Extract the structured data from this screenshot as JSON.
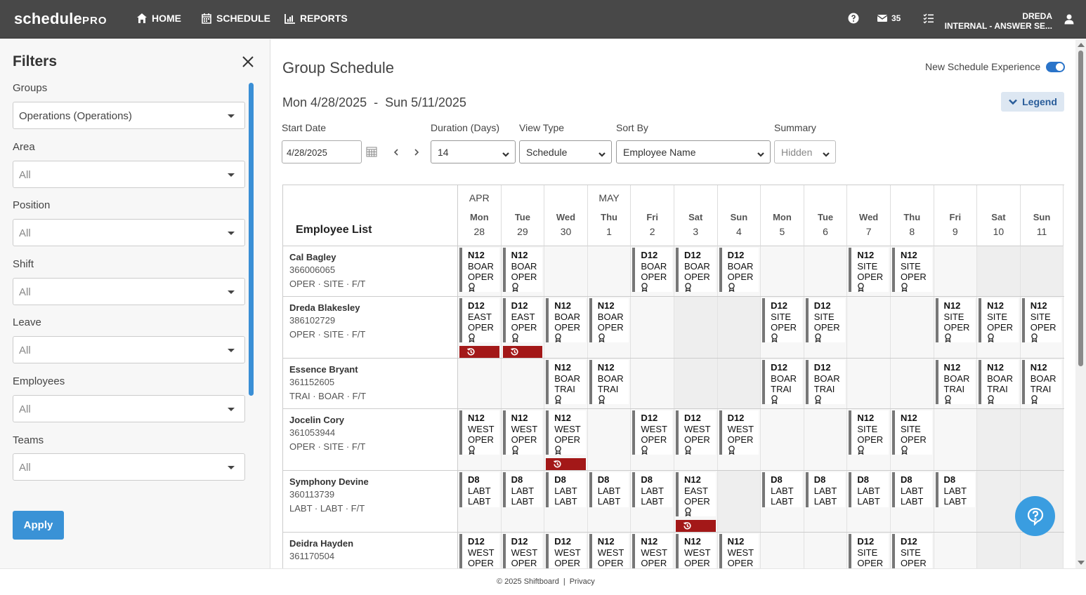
{
  "nav": {
    "logo_main": "schedule",
    "logo_pro": "PRO",
    "items": [
      {
        "label": "HOME",
        "icon": "home-icon"
      },
      {
        "label": "SCHEDULE",
        "icon": "calendar-icon"
      },
      {
        "label": "REPORTS",
        "icon": "reports-icon"
      }
    ],
    "help_icon": "help-circle-icon",
    "mail_count": "35",
    "user_name": "DREDA",
    "user_org": "INTERNAL - ANSWER SE..."
  },
  "filters": {
    "title": "Filters",
    "groups_label": "Groups",
    "groups_value": "Operations (Operations)",
    "area_label": "Area",
    "area_value": "All",
    "position_label": "Position",
    "position_value": "All",
    "shift_label": "Shift",
    "shift_value": "All",
    "leave_label": "Leave",
    "leave_value": "All",
    "employees_label": "Employees",
    "employees_value": "All",
    "teams_label": "Teams",
    "teams_value": "All",
    "apply_label": "Apply"
  },
  "main": {
    "title": "Group Schedule",
    "toggle_label": "New Schedule Experience",
    "toggle_on": true,
    "date_range": "Mon 4/28/2025  -  Sun 5/11/2025",
    "legend_label": "Legend",
    "start_date_label": "Start Date",
    "start_date_value": "4/28/2025",
    "duration_label": "Duration (Days)",
    "duration_value": "14",
    "view_type_label": "View Type",
    "view_type_value": "Schedule",
    "sort_by_label": "Sort By",
    "sort_by_value": "Employee Name",
    "summary_label": "Summary",
    "summary_value": "Hidden"
  },
  "grid": {
    "employee_list_title": "Employee List",
    "days": [
      {
        "month": "APR",
        "dow": "Mon",
        "num": "28"
      },
      {
        "month": "",
        "dow": "Tue",
        "num": "29"
      },
      {
        "month": "",
        "dow": "Wed",
        "num": "30"
      },
      {
        "month": "MAY",
        "dow": "Thu",
        "num": "1"
      },
      {
        "month": "",
        "dow": "Fri",
        "num": "2"
      },
      {
        "month": "",
        "dow": "Sat",
        "num": "3"
      },
      {
        "month": "",
        "dow": "Sun",
        "num": "4"
      },
      {
        "month": "",
        "dow": "Mon",
        "num": "5"
      },
      {
        "month": "",
        "dow": "Tue",
        "num": "6"
      },
      {
        "month": "",
        "dow": "Wed",
        "num": "7"
      },
      {
        "month": "",
        "dow": "Thu",
        "num": "8"
      },
      {
        "month": "",
        "dow": "Fri",
        "num": "9"
      },
      {
        "month": "",
        "dow": "Sat",
        "num": "10"
      },
      {
        "month": "",
        "dow": "Sun",
        "num": "11"
      }
    ],
    "employees": [
      {
        "name": "Cal Bagley",
        "id": "366006065",
        "meta": "OPER · SITE · F/T",
        "shifts": [
          [
            "N12",
            "BOAR",
            "OPER",
            1,
            0
          ],
          [
            "N12",
            "BOAR",
            "OPER",
            1,
            0
          ],
          null,
          null,
          [
            "D12",
            "BOAR",
            "OPER",
            1,
            0
          ],
          [
            "D12",
            "BOAR",
            "OPER",
            1,
            0
          ],
          [
            "D12",
            "BOAR",
            "OPER",
            1,
            0
          ],
          null,
          null,
          [
            "N12",
            "SITE",
            "OPER",
            1,
            0
          ],
          [
            "N12",
            "SITE",
            "OPER",
            1,
            0
          ],
          null,
          null,
          null
        ]
      },
      {
        "name": "Dreda Blakesley",
        "id": "386102729",
        "meta": "OPER · SITE · F/T",
        "shifts": [
          [
            "D12",
            "EAST",
            "OPER",
            1,
            1
          ],
          [
            "D12",
            "EAST",
            "OPER",
            1,
            1
          ],
          [
            "N12",
            "BOAR",
            "OPER",
            1,
            0
          ],
          [
            "N12",
            "BOAR",
            "OPER",
            1,
            0
          ],
          null,
          null,
          null,
          [
            "D12",
            "SITE",
            "OPER",
            1,
            0
          ],
          [
            "D12",
            "SITE",
            "OPER",
            1,
            0
          ],
          null,
          null,
          [
            "N12",
            "SITE",
            "OPER",
            1,
            0
          ],
          [
            "N12",
            "SITE",
            "OPER",
            1,
            0
          ],
          [
            "N12",
            "SITE",
            "OPER",
            1,
            0
          ]
        ]
      },
      {
        "name": "Essence Bryant",
        "id": "361152605",
        "meta": "TRAI · BOAR · F/T",
        "shifts": [
          null,
          null,
          [
            "N12",
            "BOAR",
            "TRAI",
            1,
            0
          ],
          [
            "N12",
            "BOAR",
            "TRAI",
            1,
            0
          ],
          null,
          null,
          null,
          [
            "D12",
            "BOAR",
            "TRAI",
            1,
            0
          ],
          [
            "D12",
            "BOAR",
            "TRAI",
            1,
            0
          ],
          null,
          null,
          [
            "N12",
            "BOAR",
            "TRAI",
            1,
            0
          ],
          [
            "N12",
            "BOAR",
            "TRAI",
            1,
            0
          ],
          [
            "N12",
            "BOAR",
            "TRAI",
            1,
            0
          ]
        ]
      },
      {
        "name": "Jocelin Cory",
        "id": "361053944",
        "meta": "OPER · SITE · F/T",
        "shifts": [
          [
            "N12",
            "WEST",
            "OPER",
            1,
            0
          ],
          [
            "N12",
            "WEST",
            "OPER",
            1,
            0
          ],
          [
            "N12",
            "WEST",
            "OPER",
            1,
            1
          ],
          null,
          [
            "D12",
            "WEST",
            "OPER",
            1,
            0
          ],
          [
            "D12",
            "WEST",
            "OPER",
            1,
            0
          ],
          [
            "D12",
            "WEST",
            "OPER",
            1,
            0
          ],
          null,
          null,
          [
            "N12",
            "SITE",
            "OPER",
            1,
            0
          ],
          [
            "N12",
            "SITE",
            "OPER",
            1,
            0
          ],
          null,
          null,
          null
        ]
      },
      {
        "name": "Symphony Devine",
        "id": "360113739",
        "meta": "LABT · LABT · F/T",
        "shifts": [
          [
            "D8",
            "LABT",
            "LABT",
            0,
            0
          ],
          [
            "D8",
            "LABT",
            "LABT",
            0,
            0
          ],
          [
            "D8",
            "LABT",
            "LABT",
            0,
            0
          ],
          [
            "D8",
            "LABT",
            "LABT",
            0,
            0
          ],
          [
            "D8",
            "LABT",
            "LABT",
            0,
            0
          ],
          [
            "N12",
            "EAST",
            "OPER",
            1,
            1
          ],
          null,
          [
            "D8",
            "LABT",
            "LABT",
            0,
            0
          ],
          [
            "D8",
            "LABT",
            "LABT",
            0,
            0
          ],
          [
            "D8",
            "LABT",
            "LABT",
            0,
            0
          ],
          [
            "D8",
            "LABT",
            "LABT",
            0,
            0
          ],
          [
            "D8",
            "LABT",
            "LABT",
            0,
            0
          ],
          null,
          null
        ]
      },
      {
        "name": "Deidra Hayden",
        "id": "361170504",
        "meta": "",
        "shifts": [
          [
            "D12",
            "WEST",
            "OPER",
            0,
            0
          ],
          [
            "D12",
            "WEST",
            "OPER",
            0,
            0
          ],
          [
            "D12",
            "WEST",
            "OPER",
            0,
            0
          ],
          [
            "N12",
            "WEST",
            "OPER",
            0,
            0
          ],
          [
            "N12",
            "WEST",
            "OPER",
            0,
            0
          ],
          [
            "N12",
            "WEST",
            "OPER",
            0,
            0
          ],
          [
            "N12",
            "WEST",
            "OPER",
            0,
            0
          ],
          null,
          null,
          [
            "D12",
            "SITE",
            "OPER",
            0,
            0
          ],
          [
            "D12",
            "SITE",
            "OPER",
            0,
            0
          ],
          null,
          null,
          null
        ]
      }
    ]
  },
  "footer": {
    "copyright": "© 2025 Shiftboard",
    "separator": "|",
    "privacy": "Privacy"
  },
  "colors": {
    "nav_bg": "#484848",
    "accent": "#3a92d6",
    "alert": "#a31818"
  }
}
